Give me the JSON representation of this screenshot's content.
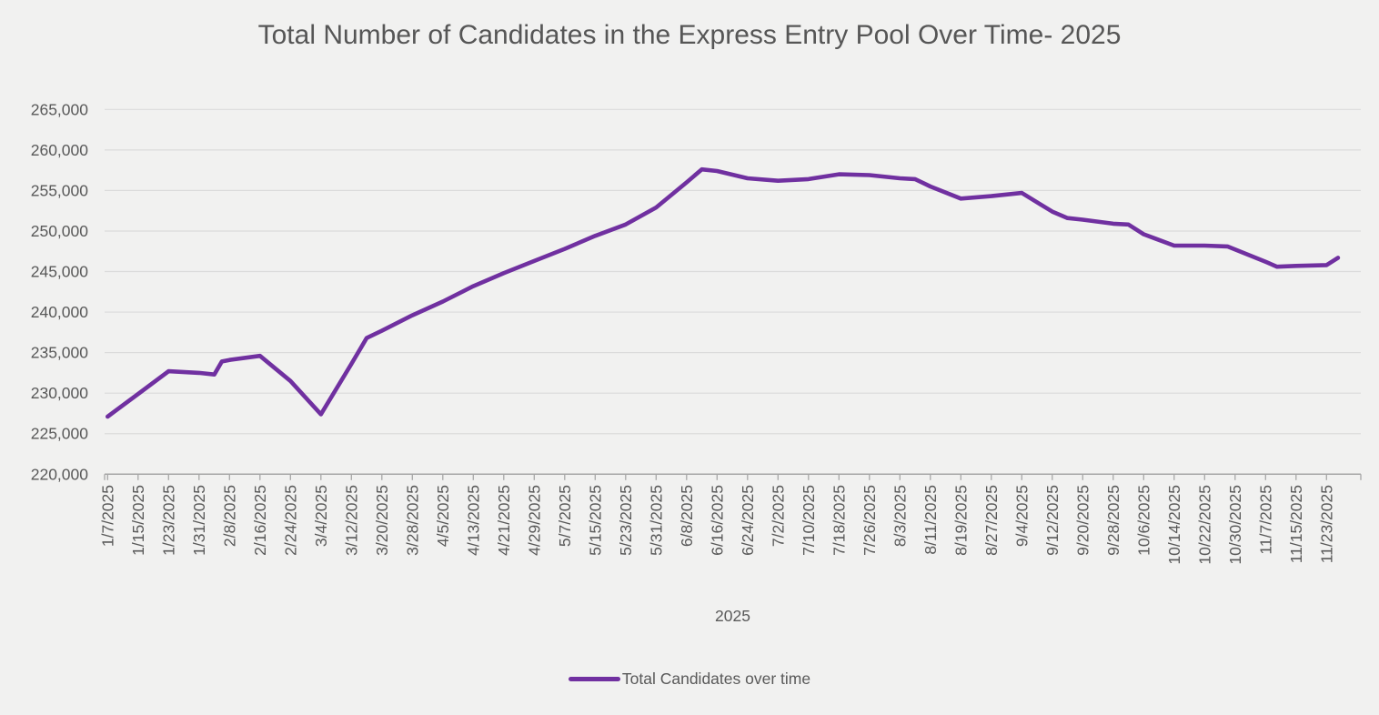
{
  "chart_data": {
    "type": "line",
    "title": "Total Number of Candidates in the Express Entry Pool Over Time- 2025",
    "x_axis_title": "2025",
    "ylabel": "",
    "grid": true,
    "legend_position": "bottom",
    "y_axis": {
      "min": 220000,
      "max": 265000,
      "step": 5000,
      "tick_labels": [
        "220,000",
        "225,000",
        "230,000",
        "235,000",
        "240,000",
        "245,000",
        "250,000",
        "255,000",
        "260,000",
        "265,000"
      ]
    },
    "x_axis": {
      "tick_labels": [
        "1/7/2025",
        "1/15/2025",
        "1/23/2025",
        "1/31/2025",
        "2/8/2025",
        "2/16/2025",
        "2/24/2025",
        "3/4/2025",
        "3/12/2025",
        "3/20/2025",
        "3/28/2025",
        "4/5/2025",
        "4/13/2025",
        "4/21/2025",
        "4/29/2025",
        "5/7/2025",
        "5/15/2025",
        "5/23/2025",
        "5/31/2025",
        "6/8/2025",
        "6/16/2025",
        "6/24/2025",
        "7/2/2025",
        "7/10/2025",
        "7/18/2025",
        "7/26/2025",
        "8/3/2025",
        "8/11/2025",
        "8/19/2025",
        "8/27/2025",
        "9/4/2025",
        "9/12/2025",
        "9/20/2025",
        "9/28/2025",
        "10/6/2025",
        "10/14/2025",
        "10/22/2025",
        "10/30/2025",
        "11/7/2025",
        "11/15/2025",
        "11/23/2025"
      ]
    },
    "series": [
      {
        "name": "Total Candidates over time",
        "color": "#7030A0",
        "points": [
          {
            "date": "1/7",
            "value": 227100
          },
          {
            "date": "1/15",
            "value": 229900
          },
          {
            "date": "1/23",
            "value": 232700
          },
          {
            "date": "1/31",
            "value": 232500
          },
          {
            "date": "2/4",
            "value": 232300
          },
          {
            "date": "2/6",
            "value": 233900
          },
          {
            "date": "2/8",
            "value": 234100
          },
          {
            "date": "2/16",
            "value": 234600
          },
          {
            "date": "2/24",
            "value": 231500
          },
          {
            "date": "3/4",
            "value": 227400
          },
          {
            "date": "3/12",
            "value": 233600
          },
          {
            "date": "3/16",
            "value": 236800
          },
          {
            "date": "3/20",
            "value": 237700
          },
          {
            "date": "3/28",
            "value": 239600
          },
          {
            "date": "4/5",
            "value": 241300
          },
          {
            "date": "4/13",
            "value": 243200
          },
          {
            "date": "4/21",
            "value": 244800
          },
          {
            "date": "4/29",
            "value": 246300
          },
          {
            "date": "5/7",
            "value": 247800
          },
          {
            "date": "5/15",
            "value": 249400
          },
          {
            "date": "5/23",
            "value": 250800
          },
          {
            "date": "5/31",
            "value": 252900
          },
          {
            "date": "6/8",
            "value": 256000
          },
          {
            "date": "6/12",
            "value": 257600
          },
          {
            "date": "6/16",
            "value": 257400
          },
          {
            "date": "6/24",
            "value": 256500
          },
          {
            "date": "7/2",
            "value": 256200
          },
          {
            "date": "7/10",
            "value": 256400
          },
          {
            "date": "7/18",
            "value": 257000
          },
          {
            "date": "7/26",
            "value": 256900
          },
          {
            "date": "8/3",
            "value": 256500
          },
          {
            "date": "8/7",
            "value": 256400
          },
          {
            "date": "8/11",
            "value": 255500
          },
          {
            "date": "8/19",
            "value": 254000
          },
          {
            "date": "8/27",
            "value": 254300
          },
          {
            "date": "9/4",
            "value": 254700
          },
          {
            "date": "9/12",
            "value": 252400
          },
          {
            "date": "9/16",
            "value": 251600
          },
          {
            "date": "9/20",
            "value": 251400
          },
          {
            "date": "9/28",
            "value": 250900
          },
          {
            "date": "10/2",
            "value": 250800
          },
          {
            "date": "10/6",
            "value": 249600
          },
          {
            "date": "10/14",
            "value": 248200
          },
          {
            "date": "10/22",
            "value": 248200
          },
          {
            "date": "10/28",
            "value": 248100
          },
          {
            "date": "11/7",
            "value": 246200
          },
          {
            "date": "11/10",
            "value": 245600
          },
          {
            "date": "11/15",
            "value": 245700
          },
          {
            "date": "11/23",
            "value": 245800
          },
          {
            "date": "11/26",
            "value": 246700
          }
        ]
      }
    ],
    "colors": {
      "background": "#F1F1F0",
      "gridline": "#DBDBDB",
      "axis": "#A6A6A6",
      "tick_text": "#595959",
      "title_text": "#565656",
      "line": "#7030A0"
    }
  }
}
